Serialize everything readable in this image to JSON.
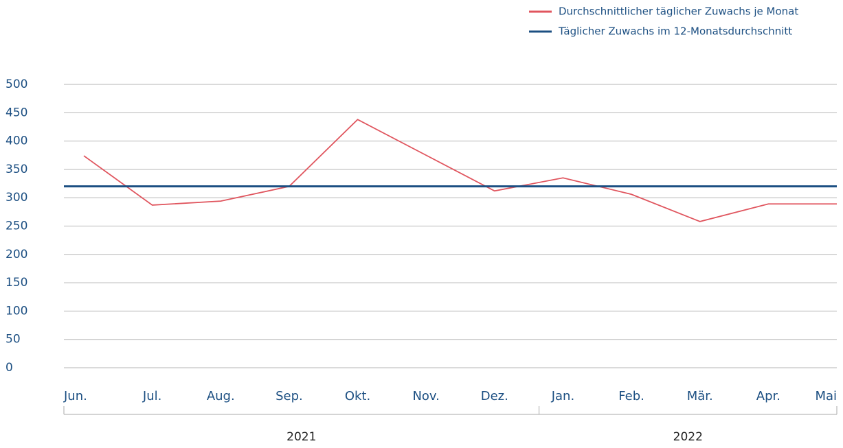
{
  "chart_data": {
    "type": "line",
    "categories": [
      "Jun.",
      "Jul.",
      "Aug.",
      "Sep.",
      "Okt.",
      "Nov.",
      "Dez.",
      "Jan.",
      "Feb.",
      "Mär.",
      "Apr.",
      "Mai"
    ],
    "x_groups": [
      {
        "label": "2021",
        "count": 7
      },
      {
        "label": "2022",
        "count": 5
      }
    ],
    "series": [
      {
        "name": "Durchschnittlicher täglicher Zuwachs je Monat",
        "color": "#e0555e",
        "values": [
          374,
          287,
          294,
          320,
          438,
          375,
          312,
          335,
          306,
          258,
          289,
          289
        ]
      },
      {
        "name": "Täglicher Zuwachs im 12-Monatsdurchschnitt",
        "color": "#1c4f82",
        "values": [
          320,
          320,
          320,
          320,
          320,
          320,
          320,
          320,
          320,
          320,
          320,
          320
        ]
      }
    ],
    "ylim": [
      0,
      500
    ],
    "yticks": [
      0,
      50,
      100,
      150,
      200,
      250,
      300,
      350,
      400,
      450,
      500
    ],
    "grid": true,
    "legend": "top-right"
  }
}
